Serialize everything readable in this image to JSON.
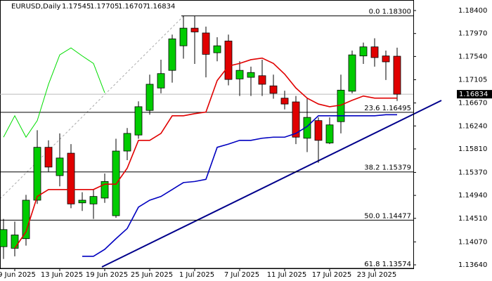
{
  "chart_data": {
    "type": "candlestick",
    "title": "EURUSD,Daily",
    "categories": [
      null,
      "9 Jun 2025",
      null,
      null,
      null,
      "13 Jun 2025",
      null,
      null,
      null,
      "19 Jun 2025",
      null,
      null,
      null,
      "25 Jun 2025",
      null,
      null,
      null,
      "1 Jul 2025",
      null,
      null,
      null,
      "7 Jul 2025",
      null,
      null,
      null,
      "11 Jul 2025",
      null,
      null,
      null,
      "17 Jul 2025",
      null,
      null,
      null,
      "23 Jul 2025",
      null,
      null
    ],
    "open": [
      1.1398,
      1.1395,
      1.1413,
      1.1485,
      1.1584,
      1.1531,
      1.1573,
      1.148,
      1.1478,
      1.1489,
      1.1456,
      1.1577,
      1.1607,
      1.1653,
      1.1695,
      1.1728,
      1.1774,
      1.1807,
      1.1798,
      1.1761,
      1.1783,
      1.1712,
      1.1715,
      1.1718,
      1.1699,
      1.1676,
      1.1669,
      1.1601,
      1.1634,
      1.1592,
      1.1632,
      1.1689,
      1.1755,
      1.1772,
      1.1755,
      1.17545
    ],
    "high": [
      1.145,
      1.1445,
      1.1495,
      1.1616,
      1.1597,
      1.161,
      1.159,
      1.15,
      1.1505,
      1.1535,
      1.16,
      1.162,
      1.167,
      1.172,
      1.1748,
      1.1795,
      1.183,
      1.183,
      1.181,
      1.179,
      1.1795,
      1.1745,
      1.1735,
      1.1748,
      1.172,
      1.169,
      1.168,
      1.1677,
      1.164,
      1.164,
      1.172,
      1.1765,
      1.178,
      1.1788,
      1.1765,
      1.17705
    ],
    "low": [
      1.1375,
      1.138,
      1.14,
      1.1478,
      1.1538,
      1.1511,
      1.147,
      1.1465,
      1.145,
      1.148,
      1.1452,
      1.156,
      1.16,
      1.1645,
      1.1685,
      1.1705,
      1.175,
      1.174,
      1.1715,
      1.1745,
      1.17,
      1.168,
      1.168,
      1.168,
      1.1675,
      1.1655,
      1.159,
      1.1575,
      1.1555,
      1.159,
      1.161,
      1.1685,
      1.174,
      1.1735,
      1.171,
      1.16707
    ],
    "close": [
      1.143,
      1.142,
      1.1485,
      1.1584,
      1.1547,
      1.1564,
      1.1478,
      1.1485,
      1.1492,
      1.152,
      1.1577,
      1.161,
      1.166,
      1.1702,
      1.1722,
      1.1787,
      1.1807,
      1.18,
      1.1758,
      1.1774,
      1.1711,
      1.1728,
      1.1724,
      1.1702,
      1.1685,
      1.1665,
      1.1603,
      1.164,
      1.1597,
      1.1626,
      1.1691,
      1.1757,
      1.1772,
      1.1752,
      1.1744,
      1.16834
    ],
    "up_color": "#00cc00",
    "down_color": "#e00000",
    "lines": [
      {
        "color": "#e00000",
        "values": [
          null,
          1.1395,
          1.1426,
          1.1492,
          1.1505,
          1.1505,
          1.1505,
          1.1505,
          1.1505,
          1.1515,
          1.1515,
          1.1545,
          1.1597,
          1.1597,
          1.161,
          1.1643,
          1.1643,
          1.1647,
          1.165,
          1.1709,
          1.1736,
          1.1741,
          1.1748,
          1.1751,
          1.1741,
          1.1721,
          1.1695,
          1.1676,
          1.1665,
          1.166,
          1.1663,
          1.1672,
          1.168,
          1.1676,
          1.1676,
          1.1676
        ]
      },
      {
        "color": "#0000c0",
        "values": [
          null,
          null,
          null,
          null,
          null,
          null,
          null,
          1.138,
          1.138,
          1.1393,
          1.1413,
          1.1432,
          1.1472,
          1.1485,
          1.1492,
          1.1505,
          1.1518,
          1.152,
          1.1524,
          1.1584,
          1.159,
          1.1597,
          1.1597,
          1.1601,
          1.1603,
          1.1603,
          1.161,
          1.1623,
          1.1643,
          1.1643,
          1.1643,
          1.1643,
          1.1643,
          1.1643,
          1.1645,
          1.1645
        ]
      },
      {
        "color": "#00dd00",
        "values": [
          1.1603,
          1.1643,
          1.1603,
          1.1634,
          1.1702,
          1.1757,
          1.177,
          1.1755,
          1.1741,
          1.1686,
          null,
          null,
          null,
          null,
          null,
          null,
          null,
          null,
          null,
          null,
          null,
          null,
          null,
          null,
          null,
          null,
          null,
          null,
          null,
          null,
          null,
          null,
          null,
          null,
          null,
          null
        ]
      }
    ],
    "levels": [
      {
        "value": 1.183,
        "label": "0.0 1.18300"
      },
      {
        "value": 1.16495,
        "label": "23.6 1.16495"
      },
      {
        "value": 1.15379,
        "label": "38.2 1.15379"
      },
      {
        "value": 1.14477,
        "label": "50.0 1.14477"
      },
      {
        "value": 1.13574,
        "label": "61.8 1.13574"
      }
    ],
    "ylim": [
      1.1364,
      1.184
    ],
    "yticks": [
      {
        "value": 1.184,
        "label": "1.18400"
      },
      {
        "value": 1.1797,
        "label": "1.17970"
      },
      {
        "value": 1.1754,
        "label": "1.17540"
      },
      1.17105,
      {
        "value": 1.1667,
        "label": "1.16670"
      },
      {
        "value": 1.1624,
        "label": "1.16240"
      },
      {
        "value": 1.1581,
        "label": "1.15810"
      },
      {
        "value": 1.1537,
        "label": "1.15370"
      },
      {
        "value": 1.1494,
        "label": "1.14940"
      },
      {
        "value": 1.1451,
        "label": "1.14510"
      },
      {
        "value": 1.1407,
        "label": "1.14070"
      },
      {
        "value": 1.1364,
        "label": "1.13640"
      }
    ]
  }
}
